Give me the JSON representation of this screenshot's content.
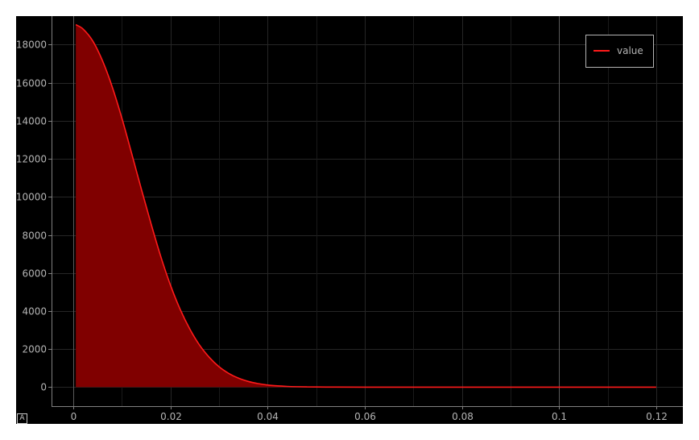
{
  "chart_data": {
    "type": "area",
    "title": "",
    "xlabel": "",
    "ylabel": "",
    "xlim": [
      -0.0045,
      0.1255
    ],
    "ylim": [
      -1000,
      19500
    ],
    "x_ticks": [
      "0",
      "0.02",
      "0.04",
      "0.06",
      "0.08",
      "0.1",
      "0.12"
    ],
    "x_tick_values": [
      0,
      0.02,
      0.04,
      0.06,
      0.08,
      0.1,
      0.12
    ],
    "y_ticks": [
      "0",
      "2000",
      "4000",
      "6000",
      "8000",
      "10000",
      "12000",
      "14000",
      "16000",
      "18000"
    ],
    "y_tick_values": [
      0,
      2000,
      4000,
      6000,
      8000,
      10000,
      12000,
      14000,
      16000,
      18000
    ],
    "grid": true,
    "legend_position": "top-right",
    "series": [
      {
        "name": "value",
        "color": "#ff1a1a",
        "fill_color": "#800000",
        "fill_range": [
          0,
          0.054
        ],
        "x": [
          0.0005,
          0.002,
          0.004,
          0.006,
          0.008,
          0.01,
          0.012,
          0.014,
          0.016,
          0.018,
          0.02,
          0.022,
          0.024,
          0.026,
          0.028,
          0.03,
          0.032,
          0.034,
          0.036,
          0.038,
          0.04,
          0.042,
          0.044,
          0.046,
          0.048,
          0.05,
          0.052,
          0.054,
          0.06,
          0.07,
          0.08,
          0.09,
          0.1,
          0.11,
          0.12
        ],
        "y": [
          19050,
          18820,
          18190,
          17150,
          15780,
          14120,
          12280,
          10400,
          8580,
          6860,
          5350,
          4080,
          3040,
          2200,
          1560,
          1070,
          720,
          470,
          300,
          185,
          110,
          65,
          38,
          22,
          12,
          7,
          4,
          2,
          0,
          0,
          0,
          0,
          0,
          0,
          0
        ]
      }
    ]
  },
  "corner_badge": "A"
}
